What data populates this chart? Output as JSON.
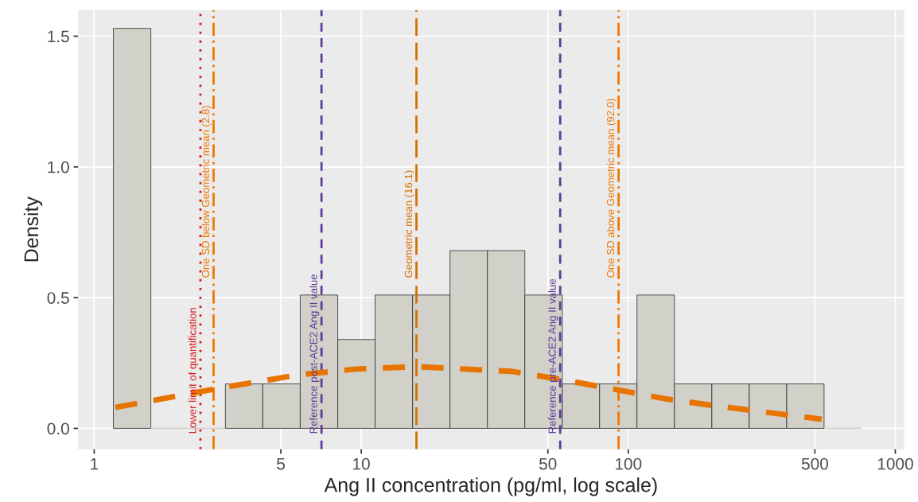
{
  "chart_data": {
    "type": "histogram",
    "xlabel": "Ang II concentration (pg/ml, log scale)",
    "ylabel": "Density",
    "bins": [
      1.18,
      1.63,
      2.25,
      3.1,
      4.28,
      5.91,
      8.17,
      11.27,
      15.57,
      21.5,
      29.69,
      40.99,
      56.6,
      78.1,
      107.8,
      148.9,
      205.6,
      283.9,
      392,
      541,
      747
    ],
    "values": [
      1.53,
      0,
      0,
      0.17,
      0.17,
      0.51,
      0.34,
      0.51,
      0.51,
      0.68,
      0.68,
      0.51,
      0.17,
      0.17,
      0.51,
      0.17,
      0.17,
      0.17,
      0.17,
      0
    ],
    "color": "#d1d0c9",
    "series": [
      {
        "type": "line",
        "color": "#e87400",
        "line_style": "dashed",
        "x": [
          1.2,
          3.03,
          5.85,
          9.58,
          16.1,
          36.6,
          56.0,
          91.7,
          138,
          203,
          315,
          530
        ],
        "values": [
          0.08,
          0.156,
          0.205,
          0.227,
          0.236,
          0.218,
          0.187,
          0.147,
          0.113,
          0.089,
          0.064,
          0.035
        ]
      }
    ],
    "ref_lines": [
      {
        "axis": "x",
        "value": 2.5,
        "label": "Lower limit of quantification",
        "color": "#d7191c",
        "line_style": "dotted"
      },
      {
        "axis": "x",
        "value": 2.8,
        "label": "One SD below Geometric mean (2.8)",
        "color": "#f07800",
        "line_style": "dashdot"
      },
      {
        "axis": "x",
        "value": 7.1,
        "label": "Reference post-ACE2 Ang II value",
        "color": "#5e3c99",
        "line_style": "dashed"
      },
      {
        "axis": "x",
        "value": 16.1,
        "label": "Geometric mean (16.1)",
        "color": "#d96f00",
        "line_style": "longdash"
      },
      {
        "axis": "x",
        "value": 55.6,
        "label": "Reference pre-ACE2 Ang II value",
        "color": "#5e3c99",
        "line_style": "dashed"
      },
      {
        "axis": "x",
        "value": 92.0,
        "label": "One SD above Geometric mean (92.0)",
        "color": "#f07800",
        "line_style": "dashdot"
      }
    ],
    "log": "x",
    "xlim": [
      0.87,
      1080
    ],
    "xticks": [
      1,
      5,
      10,
      50,
      100,
      500,
      1000
    ],
    "ylim": [
      -0.08,
      1.6
    ],
    "yticks": [
      {
        "value": 0,
        "label": "0.0"
      },
      0.5,
      {
        "value": 1,
        "label": "1.0"
      },
      1.5
    ],
    "grid": true
  }
}
